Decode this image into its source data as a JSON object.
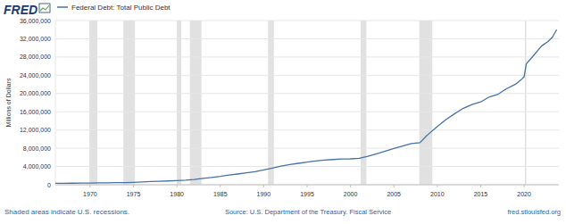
{
  "chart_data": {
    "type": "line",
    "logo": "FRED",
    "y_label": "Millions of Dollars",
    "legend": "top-left",
    "grid": true,
    "x": [
      1966,
      1967,
      1968,
      1969,
      1970,
      1971,
      1972,
      1973,
      1974,
      1975,
      1976,
      1977,
      1978,
      1979,
      1980,
      1981,
      1982,
      1983,
      1984,
      1985,
      1986,
      1987,
      1988,
      1989,
      1990,
      1991,
      1992,
      1993,
      1994,
      1995,
      1996,
      1997,
      1998,
      1999,
      2000,
      2001,
      2002,
      2003,
      2004,
      2005,
      2006,
      2007,
      2008,
      2008.75,
      2009,
      2010,
      2011,
      2012,
      2013,
      2014,
      2015,
      2016,
      2017,
      2018,
      2019,
      2019.75,
      2020,
      2020.25,
      2021,
      2022,
      2022.75,
      2023.25,
      2023.5,
      2023.75
    ],
    "series": [
      {
        "name": "Federal Debt: Total Public Debt",
        "color": "#4572a7",
        "values": [
          321000,
          330000,
          345000,
          353000,
          370000,
          398000,
          427000,
          458000,
          475000,
          533000,
          620000,
          699000,
          772000,
          827000,
          908000,
          998000,
          1142000,
          1377000,
          1572000,
          1823000,
          2125000,
          2350000,
          2602000,
          2857000,
          3233000,
          3665000,
          4065000,
          4411000,
          4693000,
          4974000,
          5225000,
          5413000,
          5526000,
          5656000,
          5674000,
          5807000,
          6228000,
          6783000,
          7379000,
          7933000,
          8507000,
          9008000,
          9229000,
          10700000,
          11127000,
          12773000,
          14270000,
          15582000,
          16771000,
          17602000,
          18152000,
          19264000,
          19846000,
          21089000,
          22028000,
          23201000,
          23687000,
          26477000,
          28133000,
          30401000,
          31420000,
          32333000,
          33167000,
          34001000
        ]
      }
    ],
    "xlim": [
      1966,
      2024
    ],
    "xticks": [
      1970,
      1975,
      1980,
      1985,
      1990,
      1995,
      2000,
      2005,
      2010,
      2015,
      2020
    ],
    "ylim": [
      0,
      36000000
    ],
    "yticks": [
      0,
      {
        "value": 4000000,
        "label": "4,000,000"
      },
      {
        "value": 8000000,
        "label": "8,000,000"
      },
      {
        "value": 12000000,
        "label": "12,000,000"
      },
      {
        "value": 16000000,
        "label": "16,000,000"
      },
      {
        "value": 20000000,
        "label": "20,000,000"
      },
      {
        "value": 24000000,
        "label": "24,000,000"
      },
      {
        "value": 28000000,
        "label": "28,000,000"
      },
      {
        "value": 32000000,
        "label": "32,000,000"
      },
      {
        "value": 36000000,
        "label": "36,000,000"
      }
    ],
    "recessions": [
      [
        1969.92,
        1970.83
      ],
      [
        1973.83,
        1975.17
      ],
      [
        1980.0,
        1980.5
      ],
      [
        1981.5,
        1982.83
      ],
      [
        1990.5,
        1991.17
      ],
      [
        2001.17,
        2001.83
      ],
      [
        2007.92,
        2009.42
      ],
      [
        2020.08,
        2020.25
      ]
    ],
    "footnotes": {
      "left": "Shaded areas indicate U.S. recessions.",
      "center": "Source: U.S. Department of the Treasury. Fiscal Service",
      "right": "fred.stlouisfed.org"
    }
  }
}
